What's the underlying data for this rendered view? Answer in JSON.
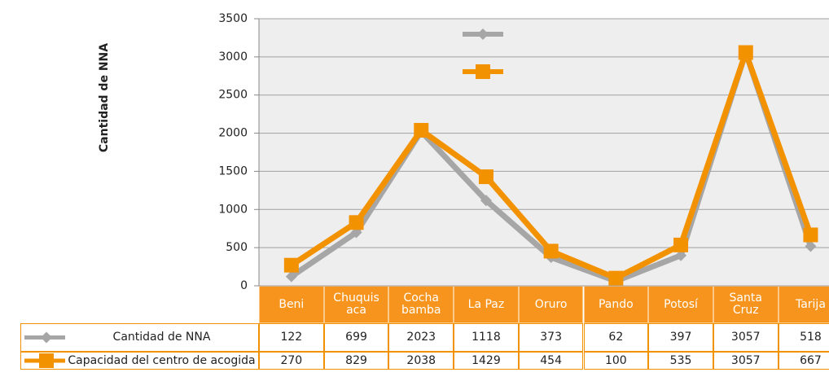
{
  "chart_data": {
    "type": "line",
    "y_label": "Cantidad de NNA",
    "categories": [
      "Beni",
      "Chuquis\naca",
      "Cocha\nbamba",
      "La Paz",
      "Oruro",
      "Pando",
      "Potosí",
      "Santa\nCruz",
      "Tarija"
    ],
    "series": [
      {
        "name": "Cantidad de NNA",
        "color": "#a6a6a6",
        "marker": "diamond",
        "values": [
          122,
          699,
          2023,
          1118,
          373,
          62,
          397,
          3057,
          518
        ]
      },
      {
        "name": "Capacidad del centro de acogida",
        "color": "#f39200",
        "marker": "square",
        "values": [
          270,
          829,
          2038,
          1429,
          454,
          100,
          535,
          3057,
          667
        ]
      }
    ],
    "ylim": [
      0,
      3500
    ],
    "yticks": [
      0,
      500,
      1000,
      1500,
      2000,
      2500,
      3000,
      3500
    ],
    "grid": true
  }
}
